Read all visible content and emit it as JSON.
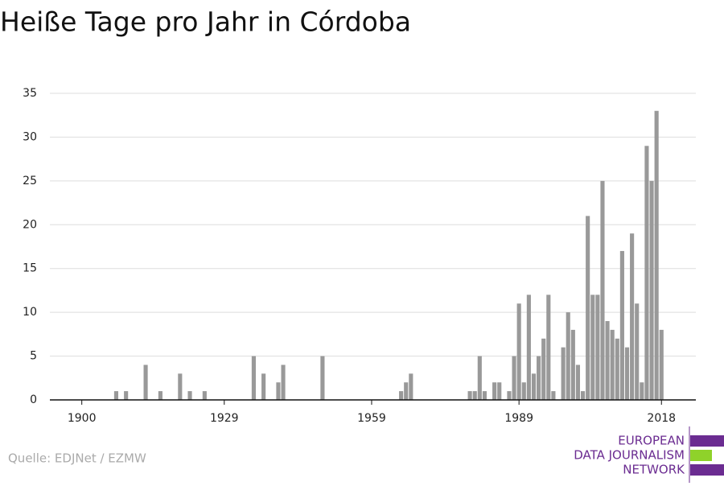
{
  "chart_data": {
    "type": "bar",
    "title": "Heiße Tage pro Jahr in Córdoba",
    "x": [
      1900,
      1901,
      1902,
      1903,
      1904,
      1905,
      1906,
      1907,
      1908,
      1909,
      1910,
      1911,
      1912,
      1913,
      1914,
      1915,
      1916,
      1917,
      1918,
      1919,
      1920,
      1921,
      1922,
      1923,
      1924,
      1925,
      1926,
      1927,
      1928,
      1929,
      1930,
      1931,
      1932,
      1933,
      1934,
      1935,
      1936,
      1937,
      1938,
      1939,
      1940,
      1941,
      1942,
      1943,
      1944,
      1945,
      1946,
      1947,
      1948,
      1949,
      1950,
      1951,
      1952,
      1953,
      1954,
      1955,
      1956,
      1957,
      1958,
      1959,
      1960,
      1961,
      1962,
      1963,
      1964,
      1965,
      1966,
      1967,
      1968,
      1969,
      1970,
      1971,
      1972,
      1973,
      1974,
      1975,
      1976,
      1977,
      1978,
      1979,
      1980,
      1981,
      1982,
      1983,
      1984,
      1985,
      1986,
      1987,
      1988,
      1989,
      1990,
      1991,
      1992,
      1993,
      1994,
      1995,
      1996,
      1997,
      1998,
      1999,
      2000,
      2001,
      2002,
      2003,
      2004,
      2005,
      2006,
      2007,
      2008,
      2009,
      2010,
      2011,
      2012,
      2013,
      2014,
      2015,
      2016,
      2017,
      2018
    ],
    "values": [
      0,
      0,
      0,
      0,
      0,
      0,
      0,
      1,
      0,
      1,
      0,
      0,
      0,
      4,
      0,
      0,
      1,
      0,
      0,
      0,
      3,
      0,
      1,
      0,
      0,
      1,
      0,
      0,
      0,
      0,
      0,
      0,
      0,
      0,
      0,
      5,
      0,
      3,
      0,
      0,
      2,
      4,
      0,
      0,
      0,
      0,
      0,
      0,
      0,
      5,
      0,
      0,
      0,
      0,
      0,
      0,
      0,
      0,
      0,
      0,
      0,
      0,
      0,
      0,
      0,
      1,
      2,
      3,
      0,
      0,
      0,
      0,
      0,
      0,
      0,
      0,
      0,
      0,
      0,
      1,
      1,
      5,
      1,
      0,
      2,
      2,
      0,
      1,
      5,
      11,
      2,
      12,
      3,
      5,
      7,
      12,
      1,
      0,
      6,
      10,
      8,
      4,
      1,
      21,
      12,
      12,
      25,
      9,
      8,
      7,
      17,
      6,
      19,
      11,
      2,
      29,
      25,
      33,
      8
    ],
    "color": "#999999",
    "xlim": [
      1893.5,
      2025
    ],
    "xticks": [
      1900,
      1929,
      1959,
      1989,
      2018
    ],
    "ylim": [
      0,
      35
    ],
    "yticks": [
      0,
      5,
      10,
      15,
      20,
      25,
      30,
      35
    ],
    "grid": true
  },
  "footer": {
    "source": "Quelle: EDJNet / EZMW",
    "logo": [
      "EUROPEAN",
      "DATA JOURNALISM",
      "NETWORK"
    ]
  }
}
